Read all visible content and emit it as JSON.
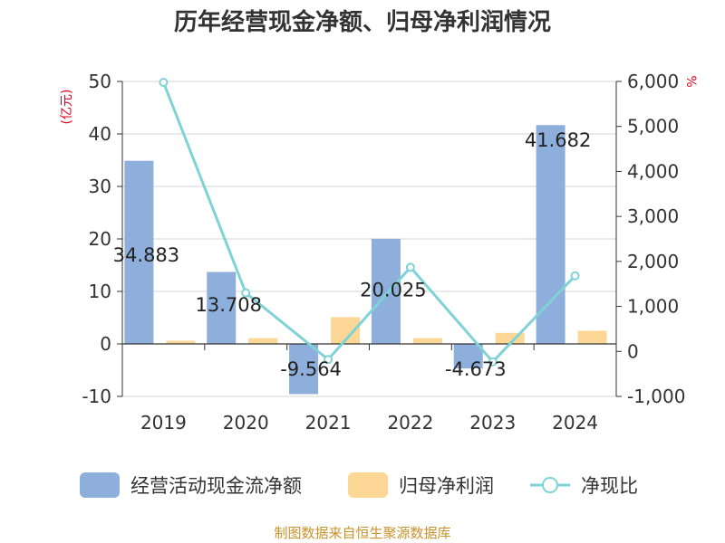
{
  "chart_data": {
    "type": "bar",
    "title": "历年经营现金净额、归母净利润情况",
    "categories": [
      "2019",
      "2020",
      "2021",
      "2022",
      "2023",
      "2024"
    ],
    "series": [
      {
        "name": "经营活动现金流净额",
        "type": "bar",
        "axis": "left",
        "color": "#8eaedb",
        "values": [
          34.883,
          13.708,
          -9.564,
          20.025,
          -4.673,
          41.682
        ],
        "labels": [
          "34.883",
          "13.708",
          "-9.564",
          "20.025",
          "-4.673",
          "41.682"
        ]
      },
      {
        "name": "归母净利润",
        "type": "bar",
        "axis": "left",
        "color": "#fcd795",
        "values": [
          0.6,
          1.1,
          5.1,
          1.1,
          2.1,
          2.5
        ]
      },
      {
        "name": "净现比",
        "type": "line",
        "axis": "right",
        "color": "#7fd3d6",
        "values": [
          5980,
          1300,
          -180,
          1870,
          -230,
          1680
        ]
      }
    ],
    "y_left": {
      "unit": "(亿元)",
      "ylim": [
        -10,
        50
      ],
      "ticks": [
        "-10",
        "0",
        "10",
        "20",
        "30",
        "40",
        "50"
      ]
    },
    "y_right": {
      "unit": "%",
      "ylim": [
        -1000,
        6000
      ],
      "ticks": [
        "-1,000",
        "0",
        "1,000",
        "2,000",
        "3,000",
        "4,000",
        "5,000",
        "6,000"
      ]
    },
    "grid": true,
    "legend_position": "bottom"
  },
  "source": "制图数据来自恒生聚源数据库"
}
